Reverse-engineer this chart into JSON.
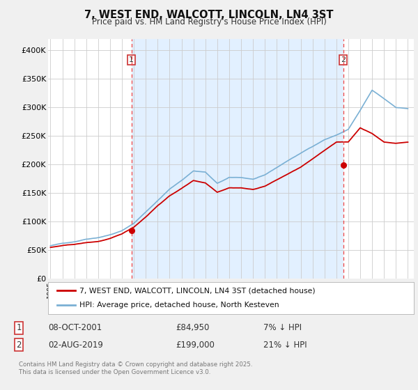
{
  "title": "7, WEST END, WALCOTT, LINCOLN, LN4 3ST",
  "subtitle": "Price paid vs. HM Land Registry's House Price Index (HPI)",
  "background_color": "#f0f0f0",
  "plot_bg_color": "#ffffff",
  "shade_color": "#ddeeff",
  "transaction1": {
    "date": "08-OCT-2001",
    "price": 84950,
    "pct": "7%"
  },
  "transaction2": {
    "date": "02-AUG-2019",
    "price": 199000,
    "pct": "21%"
  },
  "legend_line1": "7, WEST END, WALCOTT, LINCOLN, LN4 3ST (detached house)",
  "legend_line2": "HPI: Average price, detached house, North Kesteven",
  "footer": "Contains HM Land Registry data © Crown copyright and database right 2025.\nThis data is licensed under the Open Government Licence v3.0.",
  "property_color": "#cc0000",
  "hpi_color": "#7ab0d4",
  "vline_color": "#ee4444",
  "vline1_x": 2001.79,
  "vline2_x": 2019.58,
  "marker1_x": 2001.79,
  "marker1_y": 84950,
  "marker2_x": 2019.58,
  "marker2_y": 199000,
  "ylim": [
    0,
    420000
  ],
  "yticks": [
    0,
    50000,
    100000,
    150000,
    200000,
    250000,
    300000,
    350000,
    400000
  ],
  "ytick_labels": [
    "£0",
    "£50K",
    "£100K",
    "£150K",
    "£200K",
    "£250K",
    "£300K",
    "£350K",
    "£400K"
  ],
  "xmin": 1994.8,
  "xmax": 2025.5
}
